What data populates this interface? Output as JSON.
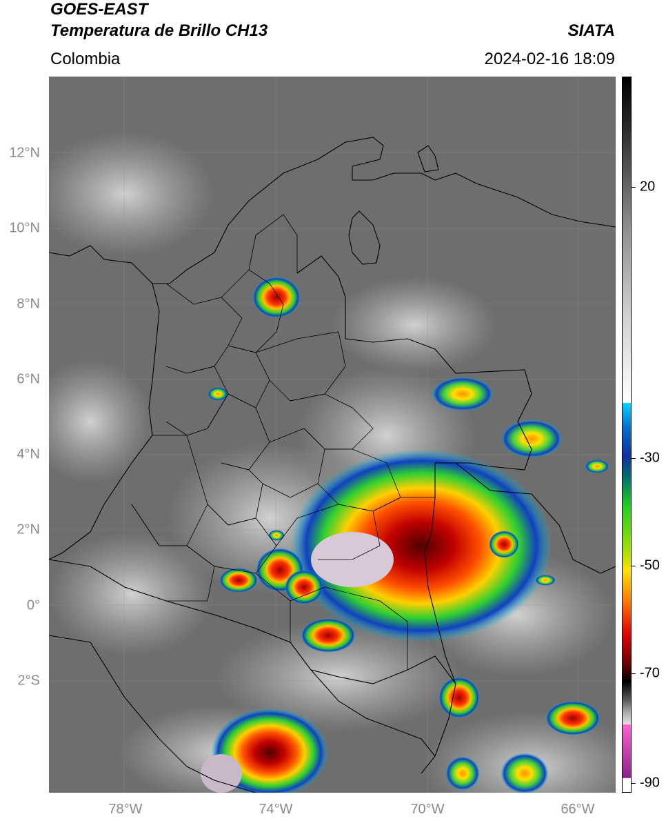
{
  "header": {
    "satellite": "GOES-EAST",
    "product": "Temperatura de Brillo CH13",
    "region": "Colombia",
    "organization": "SIATA",
    "datetime": "2024-02-16 18:09"
  },
  "map": {
    "latitude_labels": [
      "12°N",
      "10°N",
      "8°N",
      "6°N",
      "4°N",
      "2°N",
      "0°",
      "2°S"
    ],
    "longitude_labels": [
      "78°W",
      "74°W",
      "70°W",
      "66°W"
    ]
  },
  "colorbar": {
    "tick_labels": [
      "20",
      "-30",
      "-50",
      "-70",
      "-90"
    ],
    "colors": {
      "cyan": "#00d4ff",
      "blue": "#1030a0",
      "teal": "#007070",
      "green": "#20d020",
      "yellow": "#ffe000",
      "orange": "#ff8000",
      "red": "#e00000",
      "darkred": "#700000",
      "magenta": "#ff60d0",
      "purple": "#902090"
    }
  }
}
